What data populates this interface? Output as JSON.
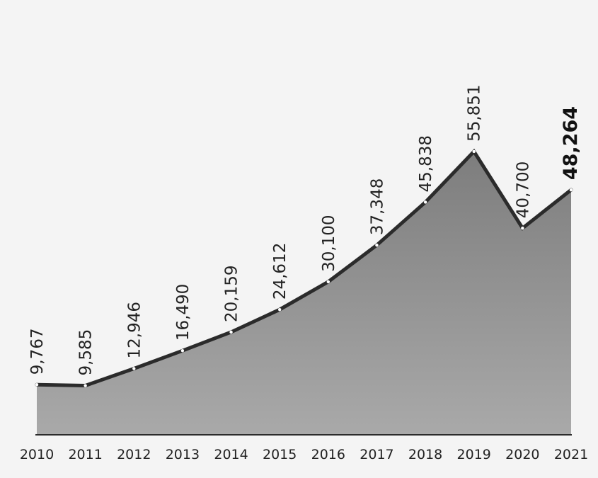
{
  "chart_data": {
    "type": "area",
    "title": "",
    "xlabel": "",
    "ylabel": "",
    "categories": [
      "2010",
      "2011",
      "2012",
      "2013",
      "2014",
      "2015",
      "2016",
      "2017",
      "2018",
      "2019",
      "2020",
      "2021"
    ],
    "values": [
      9767,
      9585,
      12946,
      16490,
      20159,
      24612,
      30100,
      37348,
      45838,
      55851,
      40700,
      48264
    ],
    "data_labels": [
      "9,767",
      "9,585",
      "12,946",
      "16,490",
      "20,159",
      "24,612",
      "30,100",
      "37,348",
      "45,838",
      "55,851",
      "40,700",
      "48,264"
    ],
    "highlight_index": 11,
    "ylim": [
      0,
      62000
    ],
    "grid": false,
    "legend": "none",
    "colors": {
      "background": "#f4f4f4",
      "area_top": "#7d7d7d",
      "area_bottom": "#a9a9a9",
      "line": "#2b2b2b",
      "marker": "#ffffff",
      "baseline": "#2b2b2b"
    }
  }
}
